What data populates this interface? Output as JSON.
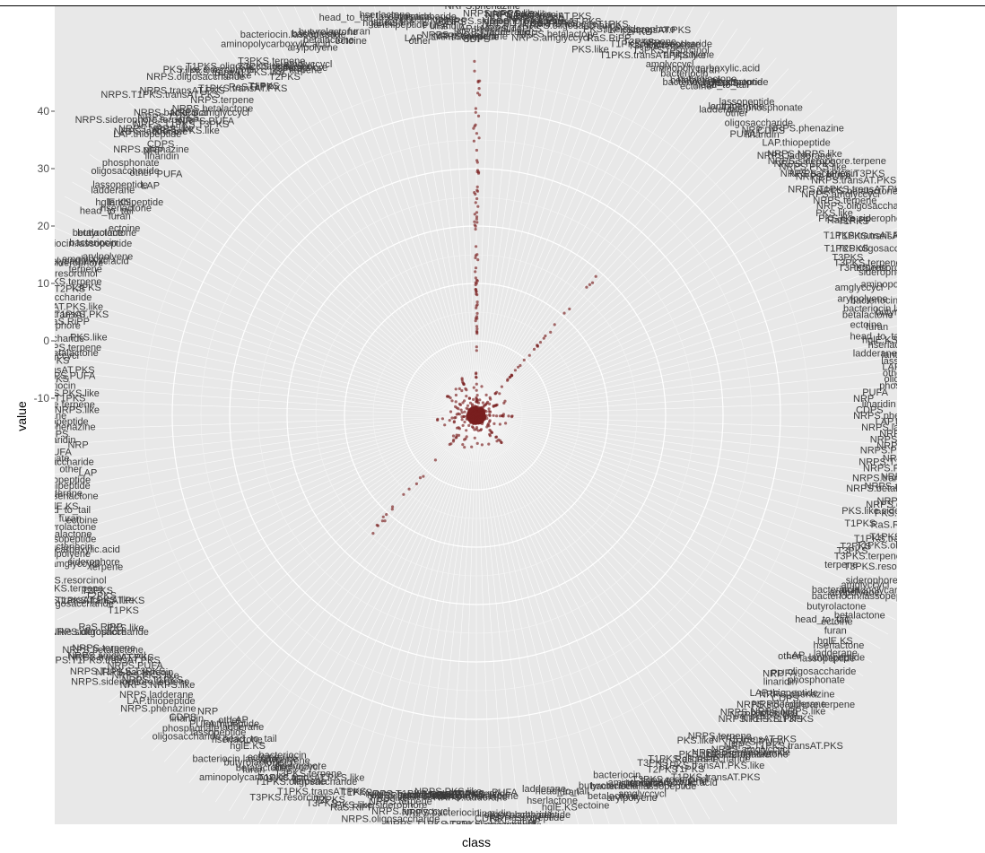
{
  "chart_data": {
    "type": "scatter",
    "coordinate_system": "polar",
    "xlabel": "class",
    "ylabel": "value",
    "y_ticks": [
      40,
      30,
      20,
      10,
      0,
      -10
    ],
    "ylim": [
      -27,
      50
    ],
    "grid": true,
    "panel_background": "#e8e8e8",
    "point_color": "#7a1f1f",
    "baseline_ring_value": -13,
    "category_labels": [
      "CDPS",
      "NRPS.phenazine",
      "LAP.thiopeptide",
      "NRPS.ladderane",
      "NRPS.NRPS.like",
      "NRPS.siderophore.terpene",
      "NRPS.T1PKS",
      "NRPS.PKS.like",
      "NRPS.bacteriocin",
      "NRPS.T1PKS.T3PKS",
      "NRPS.PUFA",
      "NRPS.T1PKS.transAT.PKS",
      "NRPS.transAT.PKS",
      "NRPS.amglyccycl",
      "NRPS.betalactone",
      "NRPS.terpene",
      "NRPS.oligosaccharide",
      "PKS.like",
      "PKS.like.siderophore",
      "RaS.RiPP",
      "T1PKS",
      "T1PKS.transAT.PKS",
      "T1PKS.transAT.PKS.like",
      "T1PKS.oligosaccharide",
      "T2PKS",
      "T3PKS",
      "T3PKS.terpene",
      "T3PKS.resorcinol",
      "terpene",
      "siderophore",
      "amglyccycl",
      "aminopolycarboxylic.acid",
      "arylpolyene",
      "bacteriocin",
      "bacteriocin.lassopeptide",
      "betalactone",
      "butyrolactone",
      "ectoine",
      "furan",
      "head_to_tail",
      "hglE.KS",
      "hserlactone",
      "ladderane",
      "lanthipeptide",
      "lassopeptide",
      "LAP",
      "other",
      "oligosaccharide",
      "phosphonate",
      "PUFA",
      "NRP",
      "linaridin"
    ]
  }
}
